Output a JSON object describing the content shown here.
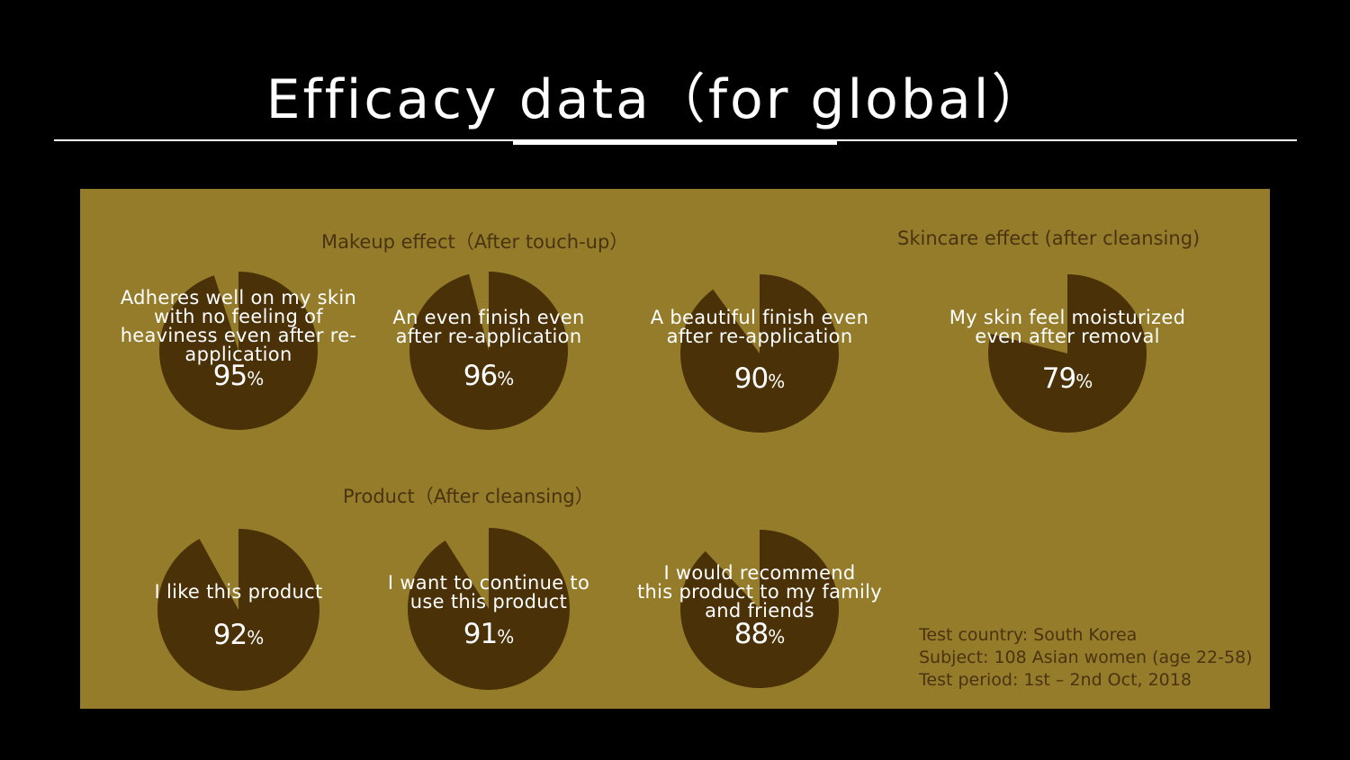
{
  "title": "Efficacy data（for global）",
  "sections": {
    "makeup": "Makeup effect（After touch-up）",
    "skincare": "Skincare effect (after cleansing)",
    "product": "Product（After cleansing）"
  },
  "colors": {
    "background": "#000000",
    "panel": "#957c2b",
    "pie": "#4a3107",
    "label": "#4a3310",
    "text": "#ffffff"
  },
  "chart_data": {
    "type": "pie",
    "value_unit": "%",
    "pies": [
      {
        "label": "Adheres well on my skin with no feeling of heaviness even after re-application",
        "value": 95,
        "group": "makeup"
      },
      {
        "label": "An even finish even after re-application",
        "value": 96,
        "group": "makeup"
      },
      {
        "label": "A beautiful finish even after re-application",
        "value": 90,
        "group": "makeup"
      },
      {
        "label": "My skin feel moisturized even after removal",
        "value": 79,
        "group": "skincare"
      },
      {
        "label": "I like this product",
        "value": 92,
        "group": "product"
      },
      {
        "label": "I want to continue to use this product",
        "value": 91,
        "group": "product"
      },
      {
        "label": "I would recommend this product to my family and friends",
        "value": 88,
        "group": "product"
      }
    ]
  },
  "footnote": {
    "country": "Test country: South Korea",
    "subject": "Subject: 108 Asian women (age 22-58)",
    "period": "Test period: 1st – 2nd Oct, 2018"
  }
}
